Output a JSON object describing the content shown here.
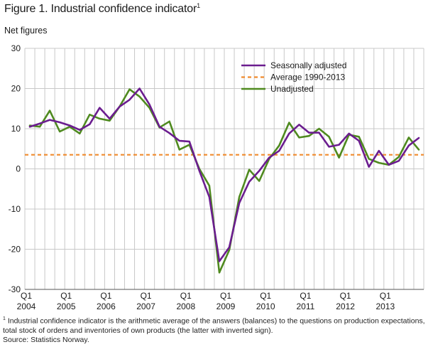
{
  "title": "Figure 1. Industrial confidence indicator",
  "title_footnote_mark": "1",
  "unit_label": "Net figures",
  "footnote": {
    "mark": "1",
    "text": "Industrial confidence indicator is the arithmetic average of the answers (balances) to the questions on production expectations, total stock of orders and inventories of own products (the latter with inverted sign).",
    "source": "Source: Statistics Norway."
  },
  "colors": {
    "seasonally_adjusted": "#6b1d8f",
    "average": "#f08b2e",
    "unadjusted": "#4f8a1f",
    "grid": "#c8c8c8"
  },
  "chart_data": {
    "type": "line",
    "title": "Figure 1. Industrial confidence indicator",
    "ylabel": "Net figures",
    "ylim": [
      -30,
      30
    ],
    "yticks": [
      30,
      20,
      10,
      0,
      -10,
      -20,
      -30
    ],
    "grid": true,
    "legend_position": "top-right",
    "x": [
      "2004Q1",
      "2004Q2",
      "2004Q3",
      "2004Q4",
      "2005Q1",
      "2005Q2",
      "2005Q3",
      "2005Q4",
      "2006Q1",
      "2006Q2",
      "2006Q3",
      "2006Q4",
      "2007Q1",
      "2007Q2",
      "2007Q3",
      "2007Q4",
      "2008Q1",
      "2008Q2",
      "2008Q3",
      "2008Q4",
      "2009Q1",
      "2009Q2",
      "2009Q3",
      "2009Q4",
      "2010Q1",
      "2010Q2",
      "2010Q3",
      "2010Q4",
      "2011Q1",
      "2011Q2",
      "2011Q3",
      "2011Q4",
      "2012Q1",
      "2012Q2",
      "2012Q3",
      "2012Q4",
      "2013Q1",
      "2013Q2",
      "2013Q3",
      "2013Q4"
    ],
    "xtick_labels": [
      {
        "quarter": "Q1",
        "year": "2004"
      },
      {
        "quarter": "Q1",
        "year": "2005"
      },
      {
        "quarter": "Q1",
        "year": "2006"
      },
      {
        "quarter": "Q1",
        "year": "2007"
      },
      {
        "quarter": "Q1",
        "year": "2008"
      },
      {
        "quarter": "Q1",
        "year": "2009"
      },
      {
        "quarter": "Q1",
        "year": "2010"
      },
      {
        "quarter": "Q1",
        "year": "2011"
      },
      {
        "quarter": "Q1",
        "year": "2012"
      },
      {
        "quarter": "Q1",
        "year": "2013"
      }
    ],
    "series": [
      {
        "name": "Seasonally adjusted",
        "style": "solid",
        "values": [
          10.5,
          11.3,
          12.2,
          11.6,
          10.8,
          9.7,
          11.1,
          15.2,
          12.5,
          15.5,
          17.2,
          20.0,
          16.0,
          10.5,
          8.9,
          7.0,
          6.8,
          -0.5,
          -7.0,
          -23.0,
          -19.5,
          -8.5,
          -3.2,
          -0.5,
          2.8,
          4.5,
          8.8,
          11.0,
          9.0,
          9.0,
          5.5,
          6.0,
          8.8,
          7.0,
          0.5,
          4.5,
          1.0,
          2.0,
          5.8,
          7.7
        ]
      },
      {
        "name": "Average 1990-2013",
        "style": "dashed",
        "values": [
          3.5,
          3.5,
          3.5,
          3.5,
          3.5,
          3.5,
          3.5,
          3.5,
          3.5,
          3.5,
          3.5,
          3.5,
          3.5,
          3.5,
          3.5,
          3.5,
          3.5,
          3.5,
          3.5,
          3.5,
          3.5,
          3.5,
          3.5,
          3.5,
          3.5,
          3.5,
          3.5,
          3.5,
          3.5,
          3.5,
          3.5,
          3.5,
          3.5,
          3.5,
          3.5,
          3.5,
          3.5,
          3.5,
          3.5,
          3.5
        ]
      },
      {
        "name": "Unadjusted",
        "style": "solid",
        "values": [
          10.8,
          10.5,
          14.5,
          9.3,
          10.5,
          8.8,
          13.5,
          12.5,
          12.0,
          15.5,
          19.8,
          18.0,
          15.2,
          10.3,
          11.8,
          4.8,
          6.0,
          0.0,
          -4.2,
          -25.8,
          -20.2,
          -7.0,
          -0.2,
          -3.0,
          2.5,
          5.8,
          11.5,
          7.8,
          8.2,
          10.0,
          8.0,
          2.8,
          8.5,
          8.0,
          2.5,
          1.5,
          1.0,
          3.0,
          7.8,
          4.8
        ]
      }
    ]
  }
}
